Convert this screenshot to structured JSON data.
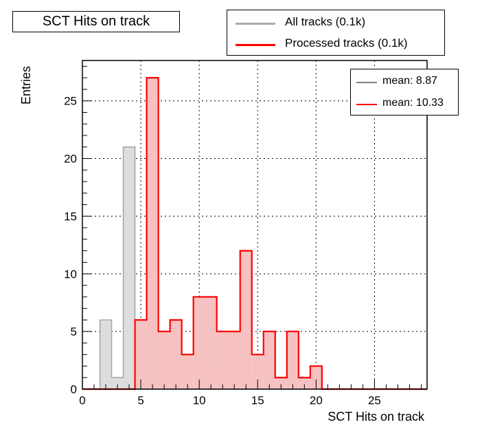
{
  "title": "SCT Hits on track",
  "legend": [
    {
      "label": "All tracks (0.1k)",
      "color": "#a8a8a8"
    },
    {
      "label": "Processed tracks (0.1k)",
      "color": "#ff0000"
    }
  ],
  "stats": [
    {
      "label": "mean: 8.87",
      "color": "#808080"
    },
    {
      "label": "mean: 10.33",
      "color": "#ff0000"
    }
  ],
  "chart_data": {
    "type": "bar",
    "title": "SCT Hits on track",
    "xlabel": "SCT Hits on track",
    "ylabel": "Entries",
    "xlim": [
      0,
      29.5
    ],
    "ylim": [
      0,
      28.5
    ],
    "bin_width": 1,
    "x_ticks": [
      0,
      5,
      10,
      15,
      20,
      25
    ],
    "y_ticks": [
      0,
      5,
      10,
      15,
      20,
      25
    ],
    "grid": true,
    "legend_position": "top-right",
    "series": [
      {
        "name": "All tracks (0.1k)",
        "color": "#a8a8a8",
        "fill": "#e6e6e6",
        "bin_low_edges": [
          1.5,
          2.5,
          3.5
        ],
        "values": [
          6,
          1,
          21
        ]
      },
      {
        "name": "Processed tracks (0.1k)",
        "color": "#ff0000",
        "fill": "#f8c4c4",
        "bin_low_edges": [
          4.5,
          5.5,
          6.5,
          7.5,
          8.5,
          9.5,
          10.5,
          11.5,
          12.5,
          13.5,
          14.5,
          15.5,
          16.5,
          17.5,
          18.5,
          19.5
        ],
        "values": [
          6,
          27,
          5,
          6,
          3,
          8,
          8,
          5,
          5,
          12,
          3,
          5,
          1,
          5,
          1,
          2
        ]
      }
    ]
  }
}
